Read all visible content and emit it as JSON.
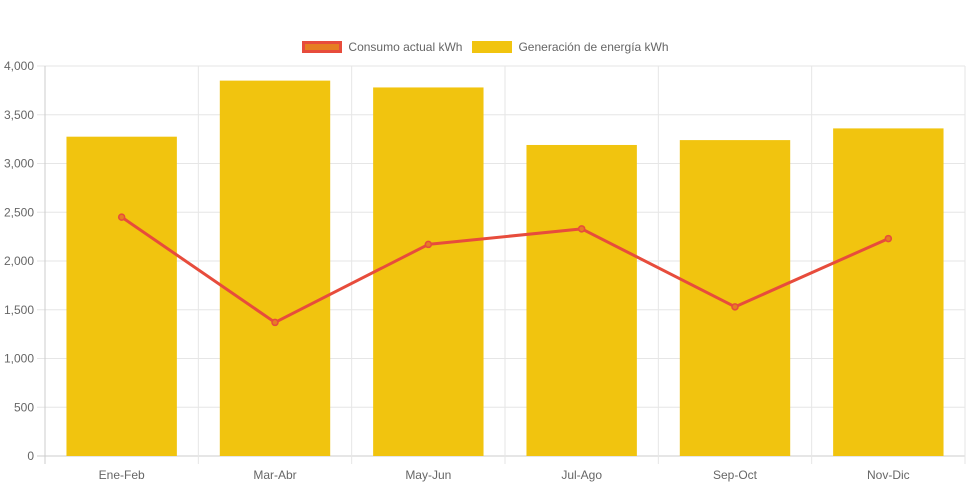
{
  "chart_data": {
    "type": "bar",
    "categories": [
      "Ene-Feb",
      "Mar-Abr",
      "May-Jun",
      "Jul-Ago",
      "Sep-Oct",
      "Nov-Dic"
    ],
    "series": [
      {
        "name": "Consumo actual kWh",
        "type": "line",
        "values": [
          2450,
          1370,
          2170,
          2330,
          1530,
          2230
        ],
        "color": "#e74c3c",
        "fill": "#e67e22"
      },
      {
        "name": "Generación de energía kWh",
        "type": "bar",
        "values": [
          3275,
          3850,
          3780,
          3190,
          3240,
          3360
        ],
        "color": "#f1c40f"
      }
    ],
    "ylim": [
      0,
      4000
    ],
    "ytick_step": 500,
    "grid": true,
    "legend_position": "top",
    "title": "",
    "xlabel": "",
    "ylabel": ""
  }
}
